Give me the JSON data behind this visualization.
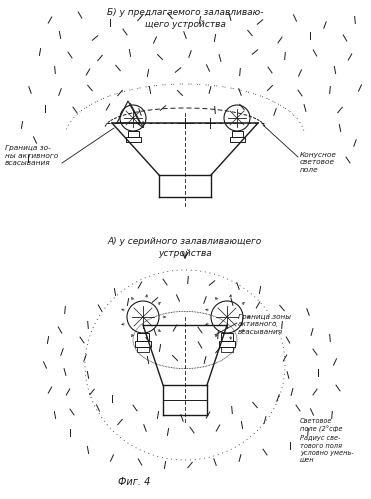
{
  "title_top": "Б) у предлагаемого залавливаю-\nщего устройства",
  "title_mid": "А) у серийного залавливающего\nустройства",
  "label_boundary_top": "Граница зо-\nны активного\nвсасывания",
  "label_cone": "Конусное\nсветовое\nполе",
  "label_boundary_bot": "Граница зоны\nактивного\nвсасывания",
  "label_light_field": "Световое\nполе (2°сфе",
  "label_radius": "Радиус све-\nтового поля\nусловно умень-\nшен",
  "fig_label": "Фиг. 4",
  "bg_color": "#ffffff",
  "draw_color": "#1a1a1a"
}
